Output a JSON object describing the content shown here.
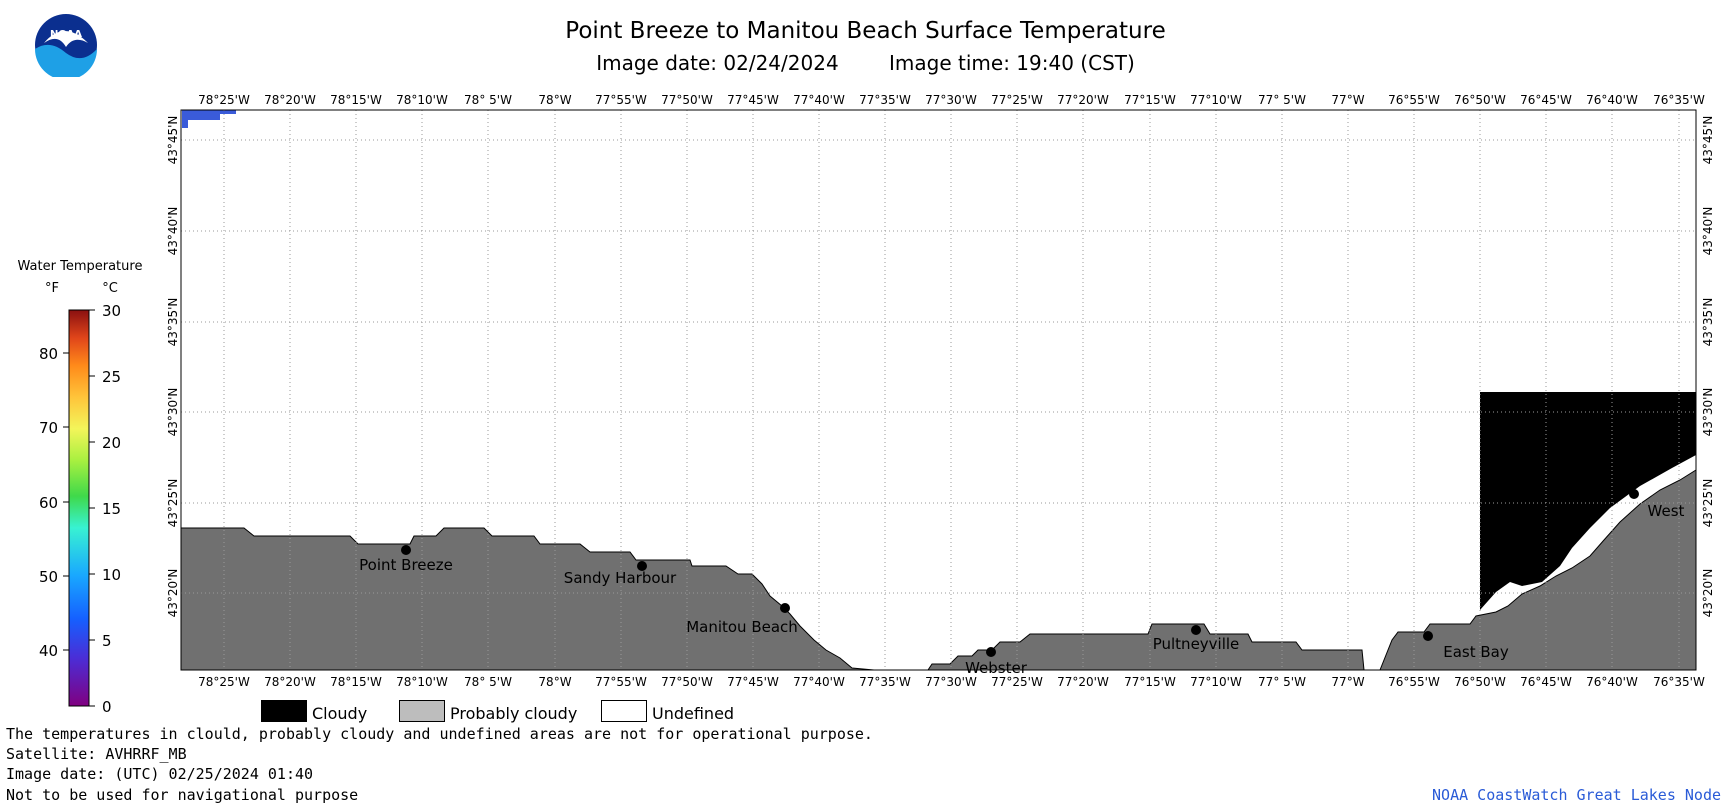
{
  "header": {
    "title": "Point Breeze to Manitou Beach Surface Temperature",
    "image_date": "Image date: 02/24/2024",
    "image_time": "Image time: 19:40 (CST)"
  },
  "logo": {
    "text": "NOAA",
    "icon": "noaa-logo"
  },
  "map": {
    "lon_labels": [
      "78°25'W",
      "78°20'W",
      "78°15'W",
      "78°10'W",
      "78° 5'W",
      "78°W",
      "77°55'W",
      "77°50'W",
      "77°45'W",
      "77°40'W",
      "77°35'W",
      "77°30'W",
      "77°25'W",
      "77°20'W",
      "77°15'W",
      "77°10'W",
      "77° 5'W",
      "77°W",
      "76°55'W",
      "76°50'W",
      "76°45'W",
      "76°40'W",
      "76°35'W"
    ],
    "lat_labels": [
      "43°45'N",
      "43°40'N",
      "43°35'N",
      "43°30'N",
      "43°25'N",
      "43°20'N"
    ],
    "places": [
      {
        "name": "Point Breeze"
      },
      {
        "name": "Sandy Harbour"
      },
      {
        "name": "Manitou Beach"
      },
      {
        "name": "Webster"
      },
      {
        "name": "Pultneyville"
      },
      {
        "name": "East Bay"
      },
      {
        "name": "West"
      }
    ],
    "colors": {
      "land": "#707070",
      "cloud": "#000000",
      "water_cold": "#3a5bd9",
      "grid": "#9a9a9a"
    }
  },
  "colorbar": {
    "title": "Water Temperature",
    "unit_f": "°F",
    "unit_c": "°C",
    "f_ticks": [
      "80",
      "70",
      "60",
      "50",
      "40"
    ],
    "c_ticks": [
      "30",
      "25",
      "20",
      "15",
      "10",
      "5",
      "0"
    ]
  },
  "legend": {
    "cloudy": "Cloudy",
    "probably_cloudy": "Probably cloudy",
    "undefined": "Undefined"
  },
  "footer": {
    "note": "The temperatures in clould, probably cloudy and undefined areas are not for operational purpose.",
    "satellite": "Satellite: AVHRRF_MB",
    "utc_date": "Image date: (UTC) 02/25/2024  01:40",
    "nav": "Not to be used for navigational purpose",
    "credit": "NOAA CoastWatch Great Lakes Node"
  }
}
